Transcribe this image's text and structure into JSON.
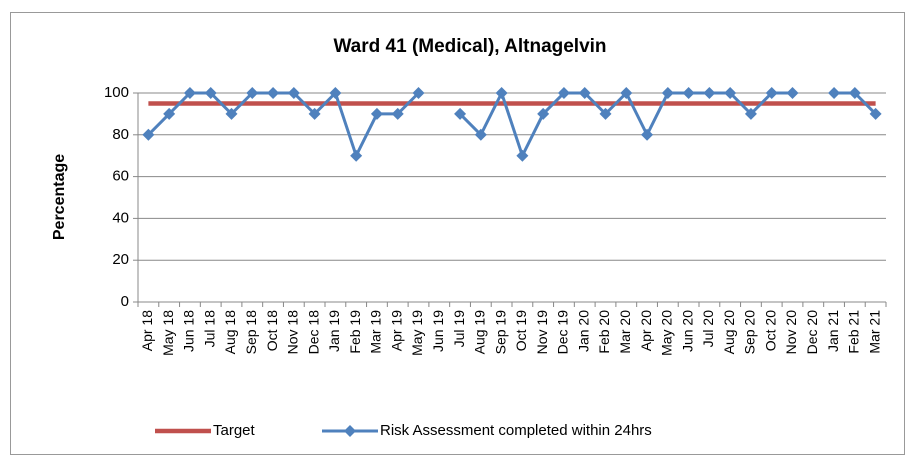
{
  "chart_data": {
    "type": "line",
    "title": "Ward 41 (Medical), Altnagelvin",
    "y_label": "Percentage",
    "categories": [
      "Apr 18",
      "May 18",
      "Jun 18",
      "Jul 18",
      "Aug 18",
      "Sep 18",
      "Oct 18",
      "Nov 18",
      "Dec 18",
      "Jan 19",
      "Feb 19",
      "Mar 19",
      "Apr 19",
      "May 19",
      "Jun 19",
      "Jul 19",
      "Aug 19",
      "Sep 19",
      "Oct 19",
      "Nov 19",
      "Dec 19",
      "Jan 20",
      "Feb 20",
      "Mar 20",
      "Apr 20",
      "May 20",
      "Jun 20",
      "Jul 20",
      "Aug 20",
      "Sep 20",
      "Oct 20",
      "Nov 20",
      "Dec 20",
      "Jan 21",
      "Feb 21",
      "Mar 21"
    ],
    "series": [
      {
        "name": "Target",
        "color": "#c0504d",
        "marker": false,
        "values": [
          95,
          95,
          95,
          95,
          95,
          95,
          95,
          95,
          95,
          95,
          95,
          95,
          95,
          95,
          95,
          95,
          95,
          95,
          95,
          95,
          95,
          95,
          95,
          95,
          95,
          95,
          95,
          95,
          95,
          95,
          95,
          95,
          95,
          95,
          95,
          95
        ]
      },
      {
        "name": "Risk Assessment completed within 24hrs",
        "color": "#4f81bd",
        "marker": true,
        "values": [
          80,
          90,
          100,
          100,
          90,
          100,
          100,
          100,
          90,
          100,
          70,
          90,
          90,
          100,
          null,
          90,
          80,
          100,
          70,
          90,
          100,
          100,
          90,
          100,
          80,
          100,
          100,
          100,
          100,
          90,
          100,
          100,
          null,
          100,
          100,
          90
        ]
      }
    ],
    "ylim": [
      0,
      100
    ],
    "yticks": [
      0,
      20,
      40,
      60,
      80,
      100
    ],
    "grid": true,
    "legend": "bottom"
  }
}
